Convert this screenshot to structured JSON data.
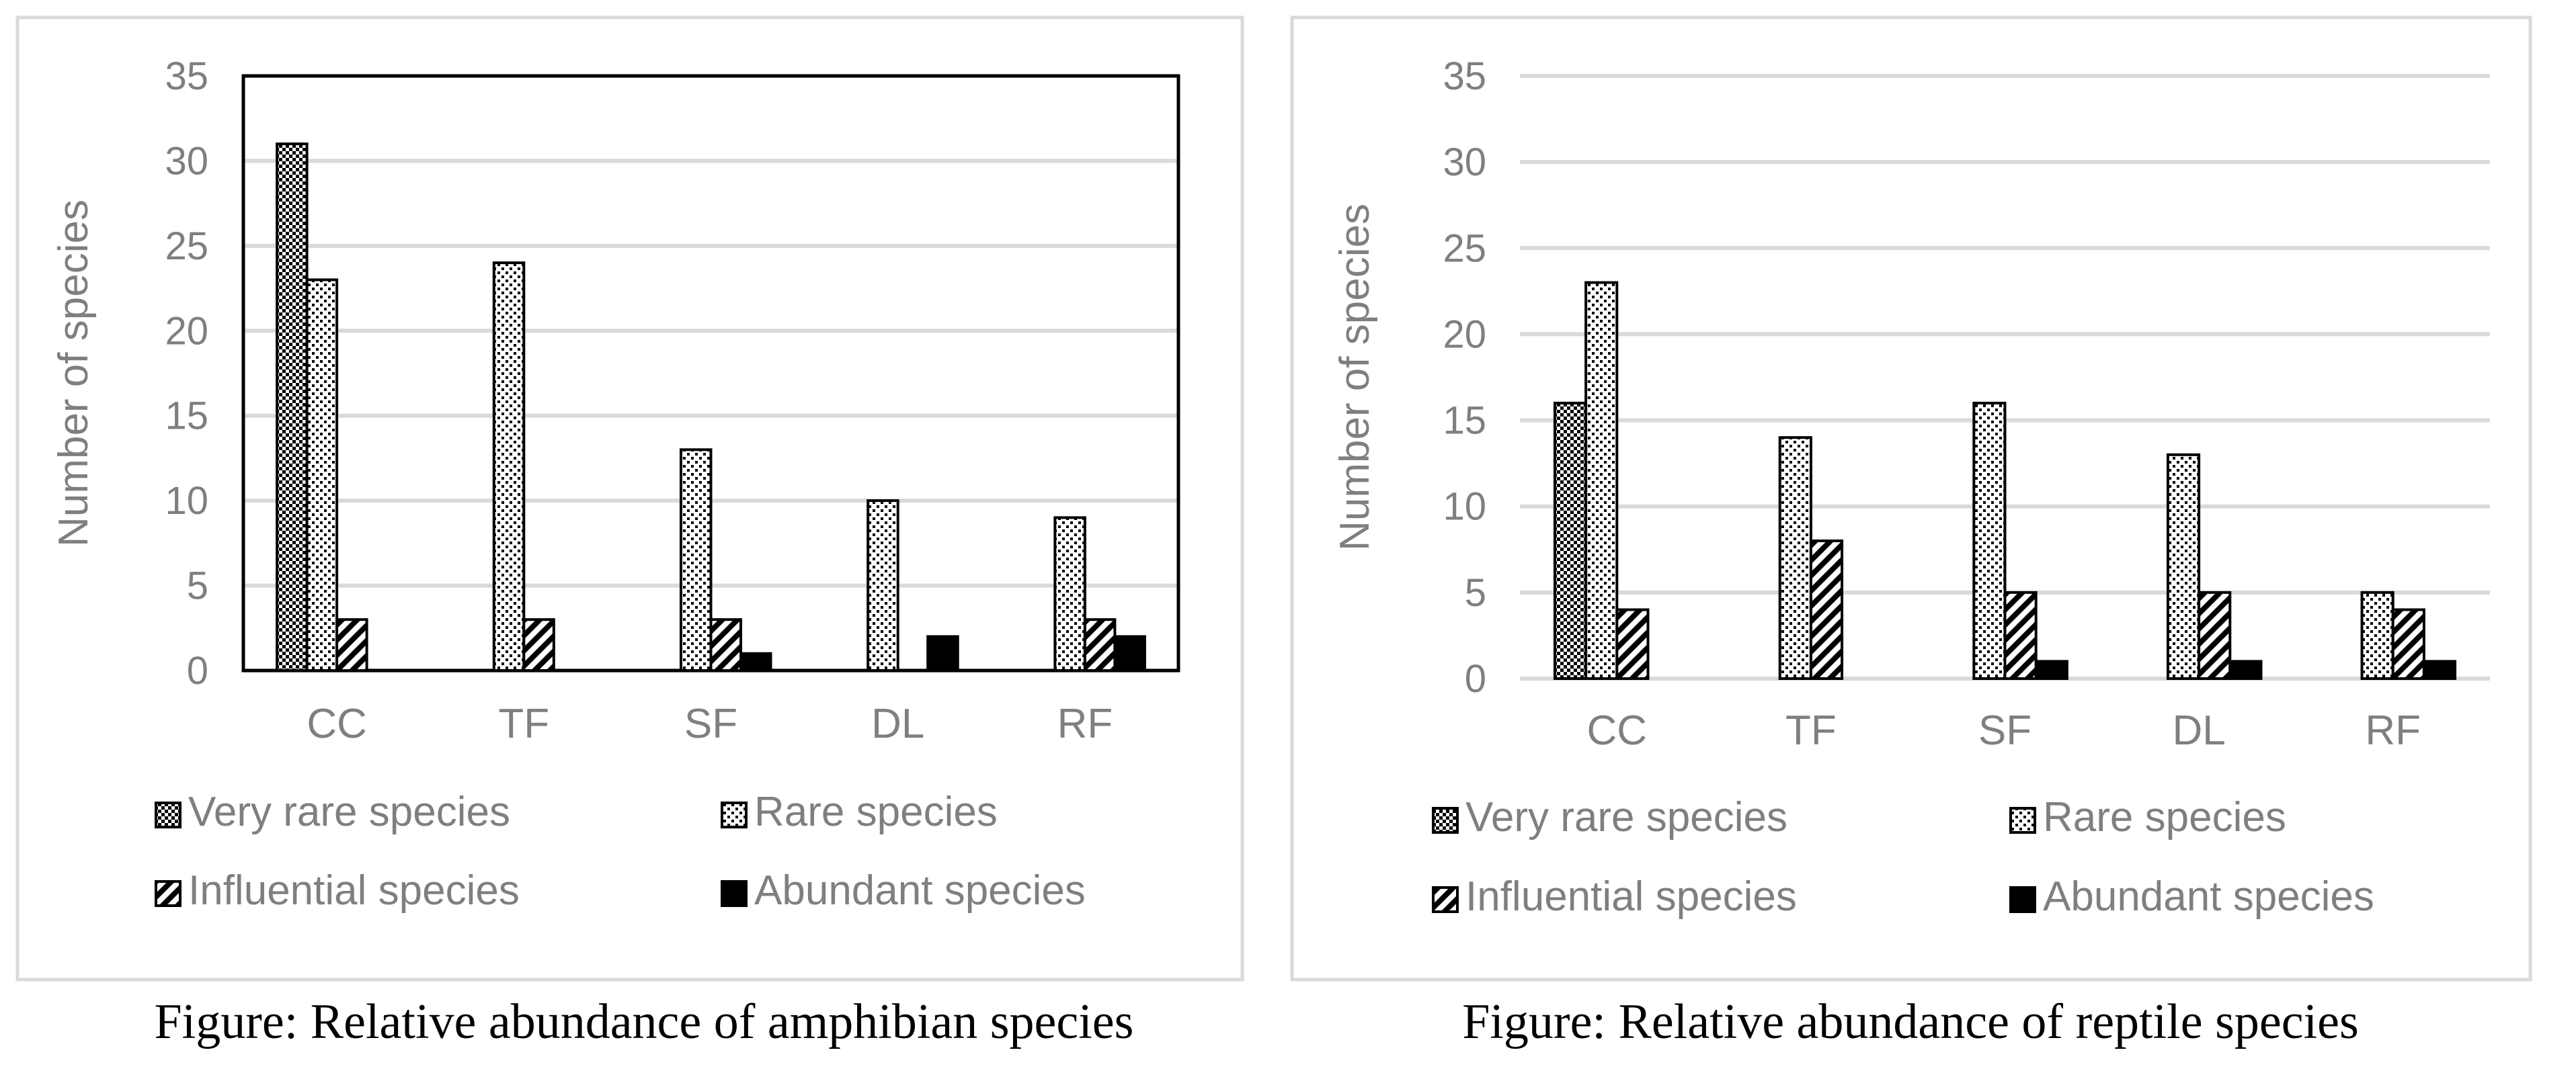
{
  "colors": {
    "frame": "#d9d9d9",
    "gridline": "#d9d9d9",
    "axis_text": "#7f7f7f",
    "plot_border": "#000000",
    "bar_stroke": "#000000",
    "bar_fill_abundant": "#000000",
    "caption_text": "#000000"
  },
  "chart_data": [
    {
      "type": "bar",
      "title": "",
      "caption": "Figure: Relative abundance of amphibian species",
      "xlabel": "",
      "ylabel": "Number of species",
      "ylim": [
        0,
        35
      ],
      "yticks": [
        "0",
        "5",
        "10",
        "15",
        "20",
        "25",
        "30",
        "35"
      ],
      "grid": true,
      "plot_border": true,
      "legend_position": "bottom",
      "categories": [
        "CC",
        "TF",
        "SF",
        "DL",
        "RF"
      ],
      "series": [
        {
          "name": "Very rare species",
          "pattern": "checker",
          "values": [
            31,
            0,
            0,
            0,
            0
          ]
        },
        {
          "name": "Rare species",
          "pattern": "dots",
          "values": [
            23,
            24,
            13,
            10,
            9
          ]
        },
        {
          "name": "Influential species",
          "pattern": "diagonal",
          "values": [
            3,
            3,
            3,
            0,
            3
          ]
        },
        {
          "name": "Abundant species",
          "pattern": "solid",
          "values": [
            0,
            0,
            1,
            2,
            2
          ]
        }
      ]
    },
    {
      "type": "bar",
      "title": "",
      "caption": "Figure: Relative abundance of reptile species",
      "xlabel": "",
      "ylabel": "Number of species",
      "ylim": [
        0,
        35
      ],
      "yticks": [
        "0",
        "5",
        "10",
        "15",
        "20",
        "25",
        "30",
        "35"
      ],
      "grid": true,
      "plot_border": false,
      "legend_position": "bottom",
      "categories": [
        "CC",
        "TF",
        "SF",
        "DL",
        "RF"
      ],
      "series": [
        {
          "name": "Very rare species",
          "pattern": "checker",
          "values": [
            16,
            0,
            0,
            0,
            0
          ]
        },
        {
          "name": "Rare species",
          "pattern": "dots",
          "values": [
            23,
            14,
            16,
            13,
            5
          ]
        },
        {
          "name": "Influential species",
          "pattern": "diagonal",
          "values": [
            4,
            8,
            5,
            5,
            4
          ]
        },
        {
          "name": "Abundant species",
          "pattern": "solid",
          "values": [
            0,
            0,
            1,
            1,
            1
          ]
        }
      ]
    }
  ]
}
